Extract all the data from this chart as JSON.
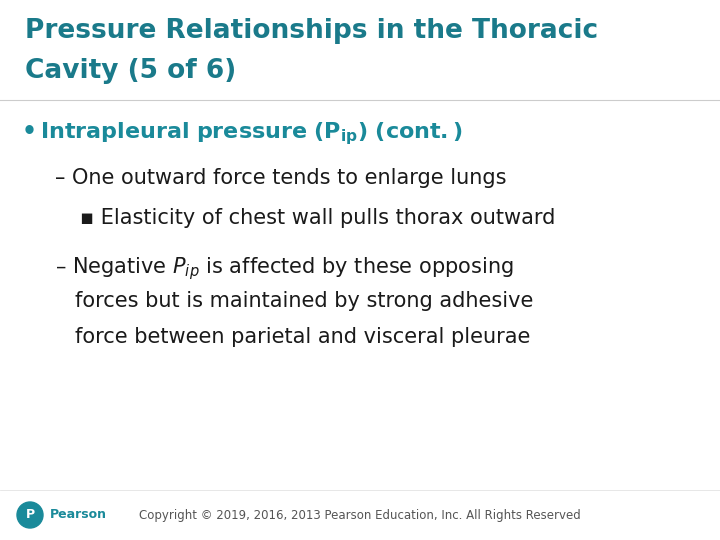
{
  "title_line1": "Pressure Relationships in the Thoracic",
  "title_line2": "Cavity (5 of 6)",
  "title_color": "#1a7a8a",
  "title_fontsize": 19,
  "title_weight": "bold",
  "bg_color": "#ffffff",
  "body_color": "#1a1a1a",
  "teal_color": "#1a8a9a",
  "bullet_color": "#1a8a9a",
  "footer_text": "Copyright © 2019, 2016, 2013 Pearson Education, Inc. All Rights Reserved",
  "footer_color": "#555555",
  "footer_fontsize": 8.5,
  "pearson_color": "#1a8a9a",
  "body_fontsize": 15,
  "sub_fontsize": 14
}
